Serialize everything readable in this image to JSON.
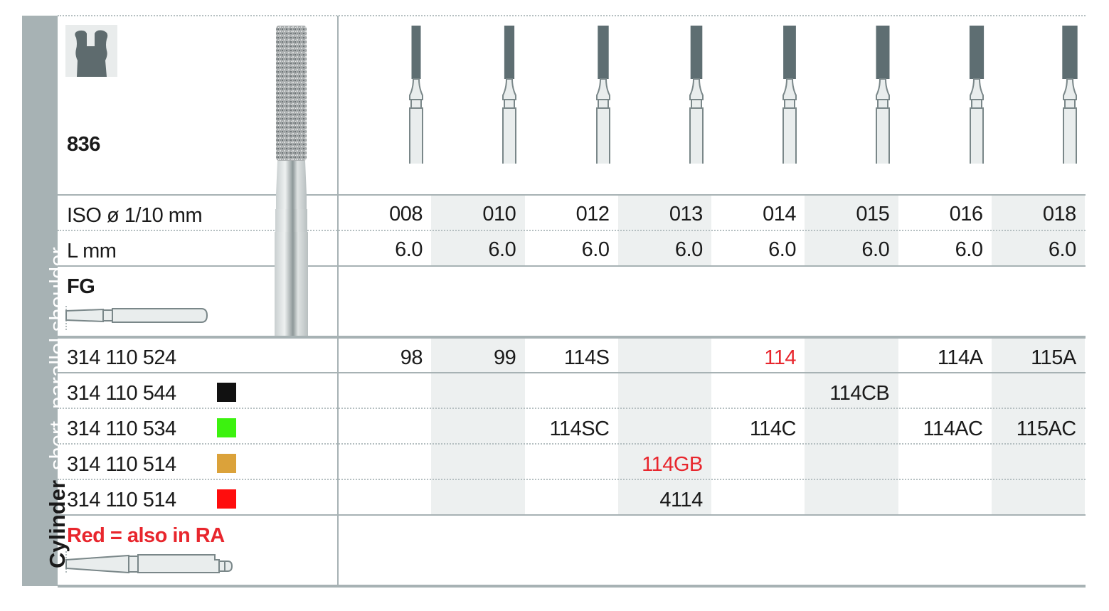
{
  "sidebar": {
    "title_bold": "Cylinder",
    "title_light": "short, parallel shoulder"
  },
  "header": {
    "model": "836",
    "icon": "tooth-preparation-icon",
    "bur_image": "diamond-cylinder-bur"
  },
  "rows": {
    "iso_label": "ISO ø 1/10 mm",
    "length_label": "L mm",
    "shank_label": "FG",
    "shank_icon": "fg-shank-icon"
  },
  "columns": [
    {
      "iso": "008",
      "length": "6.0"
    },
    {
      "iso": "010",
      "length": "6.0"
    },
    {
      "iso": "012",
      "length": "6.0"
    },
    {
      "iso": "013",
      "length": "6.0"
    },
    {
      "iso": "014",
      "length": "6.0"
    },
    {
      "iso": "015",
      "length": "6.0"
    },
    {
      "iso": "016",
      "length": "6.0"
    },
    {
      "iso": "018",
      "length": "6.0"
    }
  ],
  "products": [
    {
      "code": "314 110 524",
      "swatch": null,
      "cells": [
        "98",
        "99",
        "114S",
        "",
        "114",
        "",
        "114A",
        "115A"
      ],
      "red": [
        false,
        false,
        false,
        false,
        true,
        false,
        false,
        false
      ]
    },
    {
      "code": "314 110 544",
      "swatch": "#111111",
      "cells": [
        "",
        "",
        "",
        "",
        "",
        "114CB",
        "",
        ""
      ],
      "red": [
        false,
        false,
        false,
        false,
        false,
        false,
        false,
        false
      ]
    },
    {
      "code": "314 110 534",
      "swatch": "#3cf20f",
      "cells": [
        "",
        "",
        "114SC",
        "",
        "114C",
        "",
        "114AC",
        "115AC"
      ],
      "red": [
        false,
        false,
        false,
        false,
        false,
        false,
        false,
        false
      ]
    },
    {
      "code": "314 110 514",
      "swatch": "#dba23a",
      "cells": [
        "",
        "",
        "",
        "114GB",
        "",
        "",
        "",
        ""
      ],
      "red": [
        false,
        false,
        false,
        true,
        false,
        false,
        false,
        false
      ]
    },
    {
      "code": "314 110 514",
      "swatch": "#ff0d0d",
      "cells": [
        "",
        "",
        "",
        "4114",
        "",
        "",
        "",
        ""
      ],
      "red": [
        false,
        false,
        false,
        false,
        false,
        false,
        false,
        false
      ]
    }
  ],
  "legend": {
    "note": "Red = also in RA",
    "ra_icon": "ra-shank-icon"
  },
  "colors": {
    "frame": "#a7b2b4",
    "shade": "#edf0f0",
    "red": "#e8262d",
    "bur_head": "#5e6e72"
  }
}
